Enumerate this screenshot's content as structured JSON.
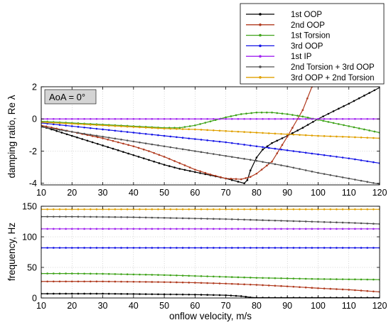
{
  "chart_data": [
    {
      "type": "line",
      "panel": "damping",
      "ylabel": "damping ratio, Re λ",
      "xlabel": "",
      "xlim": [
        10,
        120
      ],
      "ylim": [
        -4.1,
        2
      ],
      "xticks": [
        "10",
        "20",
        "30",
        "40",
        "50",
        "60",
        "70",
        "80",
        "90",
        "100",
        "110",
        "120"
      ],
      "yticks": [
        "2",
        "0",
        "-2",
        "-4"
      ],
      "ytick_values": [
        2,
        0,
        -2,
        -4
      ],
      "grid": true,
      "annotation": "AoA = 0°",
      "series": [
        {
          "name": "1st OOP",
          "color": "#000000",
          "x": [
            10,
            15,
            20,
            25,
            30,
            35,
            40,
            45,
            50,
            55,
            60,
            65,
            70,
            74,
            76,
            77,
            78,
            80,
            82,
            85,
            90,
            95,
            100,
            105,
            110,
            115,
            120
          ],
          "y": [
            -0.45,
            -0.75,
            -1.05,
            -1.35,
            -1.65,
            -1.95,
            -2.25,
            -2.55,
            -2.85,
            -3.1,
            -3.3,
            -3.5,
            -3.7,
            -3.9,
            -4.0,
            -3.8,
            -3.2,
            -2.4,
            -1.9,
            -1.5,
            -1.05,
            -0.55,
            0.0,
            0.48,
            0.95,
            1.45,
            1.95
          ]
        },
        {
          "name": "2nd OOP",
          "color": "#b03a1e",
          "x": [
            10,
            15,
            20,
            25,
            30,
            35,
            40,
            45,
            50,
            55,
            60,
            65,
            70,
            75,
            78,
            80,
            85,
            90,
            95,
            98
          ],
          "y": [
            -0.4,
            -0.6,
            -0.8,
            -1.0,
            -1.2,
            -1.45,
            -1.7,
            -2.0,
            -2.35,
            -2.75,
            -3.15,
            -3.45,
            -3.7,
            -3.75,
            -3.6,
            -3.4,
            -2.65,
            -1.1,
            0.55,
            2.0
          ]
        },
        {
          "name": "1st Torsion",
          "color": "#3fa31a",
          "x": [
            10,
            20,
            30,
            40,
            50,
            55,
            60,
            65,
            70,
            75,
            80,
            85,
            90,
            95,
            100,
            105,
            110,
            115,
            120
          ],
          "y": [
            -0.15,
            -0.25,
            -0.35,
            -0.45,
            -0.55,
            -0.55,
            -0.4,
            -0.15,
            0.1,
            0.3,
            0.4,
            0.4,
            0.3,
            0.15,
            -0.05,
            -0.25,
            -0.45,
            -0.65,
            -0.85
          ]
        },
        {
          "name": "3rd OOP",
          "color": "#1414e6",
          "x": [
            10,
            20,
            30,
            40,
            50,
            60,
            70,
            80,
            90,
            100,
            110,
            120
          ],
          "y": [
            -0.25,
            -0.45,
            -0.65,
            -0.85,
            -1.05,
            -1.25,
            -1.45,
            -1.7,
            -1.95,
            -2.2,
            -2.45,
            -2.75
          ]
        },
        {
          "name": "1st IP",
          "color": "#a020f0",
          "x": [
            10,
            20,
            30,
            40,
            50,
            60,
            70,
            80,
            90,
            100,
            110,
            120
          ],
          "y": [
            0,
            0,
            0,
            0,
            0,
            0,
            0,
            0,
            0,
            0,
            0,
            0
          ]
        },
        {
          "name": "2nd Torsion + 3rd OOP",
          "color": "#505050",
          "x": [
            10,
            20,
            30,
            40,
            50,
            60,
            70,
            80,
            90,
            100,
            110,
            120
          ],
          "y": [
            -0.5,
            -0.8,
            -1.1,
            -1.4,
            -1.7,
            -2.0,
            -2.3,
            -2.6,
            -2.95,
            -3.35,
            -3.7,
            -4.05
          ]
        },
        {
          "name": "3rd OOP + 2nd Torsion",
          "color": "#e0a000",
          "x": [
            10,
            20,
            30,
            40,
            50,
            60,
            70,
            80,
            90,
            100,
            110,
            120
          ],
          "y": [
            -0.2,
            -0.3,
            -0.4,
            -0.5,
            -0.6,
            -0.65,
            -0.75,
            -0.85,
            -0.95,
            -1.05,
            -1.12,
            -1.2
          ]
        }
      ]
    },
    {
      "type": "line",
      "panel": "frequency",
      "ylabel": "frequency, Hz",
      "xlabel": "onflow velocity, m/s",
      "xlim": [
        10,
        120
      ],
      "ylim": [
        0,
        150
      ],
      "xticks": [
        "10",
        "20",
        "30",
        "40",
        "50",
        "60",
        "70",
        "80",
        "90",
        "100",
        "110",
        "120"
      ],
      "yticks": [
        "150",
        "100",
        "50",
        "0"
      ],
      "ytick_values": [
        150,
        100,
        50,
        0
      ],
      "grid": true,
      "series": [
        {
          "name": "1st OOP",
          "color": "#000000",
          "x": [
            10,
            20,
            30,
            40,
            50,
            60,
            70,
            75,
            78,
            80,
            90,
            100,
            110,
            120
          ],
          "y": [
            7,
            7,
            7,
            6.5,
            6,
            5.5,
            4.5,
            3,
            1,
            0.5,
            0.5,
            0.5,
            0.5,
            0.5
          ]
        },
        {
          "name": "2nd OOP",
          "color": "#b03a1e",
          "x": [
            10,
            20,
            30,
            40,
            50,
            60,
            70,
            80,
            90,
            100,
            110,
            120
          ],
          "y": [
            27,
            27,
            27,
            26.5,
            26,
            25,
            23.5,
            21.5,
            19,
            16,
            13.5,
            10
          ]
        },
        {
          "name": "1st Torsion",
          "color": "#3fa31a",
          "x": [
            10,
            20,
            30,
            40,
            50,
            60,
            70,
            80,
            90,
            100,
            110,
            120
          ],
          "y": [
            40,
            40,
            39.5,
            38.5,
            37.5,
            36,
            34.5,
            33,
            32,
            31,
            30.5,
            30
          ]
        },
        {
          "name": "3rd OOP",
          "color": "#1414e6",
          "x": [
            10,
            20,
            30,
            40,
            50,
            60,
            70,
            80,
            90,
            100,
            110,
            120
          ],
          "y": [
            82,
            82,
            82,
            82,
            82,
            82,
            82,
            82,
            82,
            82,
            82,
            82
          ]
        },
        {
          "name": "1st IP",
          "color": "#a020f0",
          "x": [
            10,
            20,
            30,
            40,
            50,
            60,
            70,
            80,
            90,
            100,
            110,
            120
          ],
          "y": [
            113,
            113,
            113,
            113,
            113,
            113,
            113,
            113,
            113,
            113,
            113,
            113
          ]
        },
        {
          "name": "2nd Torsion + 3rd OOP",
          "color": "#505050",
          "x": [
            10,
            20,
            30,
            40,
            50,
            60,
            70,
            80,
            90,
            100,
            110,
            120
          ],
          "y": [
            133,
            133,
            132.5,
            132,
            131,
            130,
            129,
            127.5,
            126,
            124.5,
            123,
            121
          ]
        },
        {
          "name": "3rd OOP + 2nd Torsion",
          "color": "#e0a000",
          "x": [
            10,
            20,
            30,
            40,
            50,
            60,
            70,
            80,
            90,
            100,
            110,
            120
          ],
          "y": [
            145,
            145,
            145,
            145,
            145,
            145,
            145,
            145,
            145,
            145,
            145,
            145
          ]
        }
      ]
    }
  ],
  "legend": {
    "placement": "top-right",
    "entries": [
      "1st OOP",
      "2nd OOP",
      "1st Torsion",
      "3rd OOP",
      "1st IP",
      "2nd Torsion + 3rd OOP",
      "3rd OOP + 2nd Torsion"
    ]
  }
}
